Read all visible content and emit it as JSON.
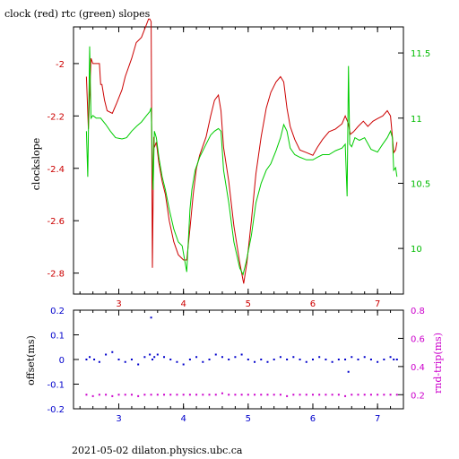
{
  "chart_data": [
    {
      "type": "line",
      "title": "clock (red) rtc (green) slopes",
      "ylabel": "clockslope",
      "xlim": [
        2.3,
        7.4
      ],
      "ylim": [
        -2.88,
        -1.86
      ],
      "y2lim": [
        9.65,
        11.7
      ],
      "x_ticks": [
        "3",
        "4",
        "5",
        "6",
        "7"
      ],
      "y_ticks": [
        "-2",
        "-2.2",
        "-2.4",
        "-2.6",
        "-2.8"
      ],
      "y2_ticks": [
        "11.5",
        "11",
        "10.5",
        "10"
      ],
      "colors": {
        "axis_left": "#cc0000",
        "axis_right": "#00bb00"
      },
      "series": [
        {
          "axis": "left",
          "color": "#cc0000",
          "x": [
            2.5,
            2.53,
            2.57,
            2.6,
            2.62,
            2.7,
            2.72,
            2.74,
            2.78,
            2.82,
            2.9,
            2.97,
            3.05,
            3.1,
            3.2,
            3.27,
            3.35,
            3.43,
            3.46,
            3.48,
            3.5,
            3.52,
            3.53,
            3.54,
            3.55,
            3.58,
            3.62,
            3.67,
            3.72,
            3.78,
            3.85,
            3.92,
            4.0,
            4.05,
            4.1,
            4.15,
            4.2,
            4.25,
            4.35,
            4.42,
            4.48,
            4.54,
            4.58,
            4.62,
            4.7,
            4.78,
            4.87,
            4.93,
            4.98,
            5.05,
            5.12,
            5.2,
            5.28,
            5.35,
            5.43,
            5.5,
            5.55,
            5.6,
            5.65,
            5.72,
            5.8,
            5.9,
            6.0,
            6.07,
            6.15,
            6.25,
            6.35,
            6.45,
            6.5,
            6.55,
            6.58,
            6.63,
            6.7,
            6.78,
            6.85,
            6.93,
            7.0,
            7.08,
            7.15,
            7.2,
            7.23,
            7.25,
            7.28,
            7.3
          ],
          "y": [
            -2.05,
            -2.25,
            -1.98,
            -2.0,
            -2.0,
            -2.0,
            -2.08,
            -2.08,
            -2.14,
            -2.18,
            -2.19,
            -2.15,
            -2.1,
            -2.05,
            -1.98,
            -1.92,
            -1.9,
            -1.85,
            -1.83,
            -1.83,
            -1.84,
            -2.78,
            -2.52,
            -2.28,
            -2.32,
            -2.3,
            -2.38,
            -2.45,
            -2.5,
            -2.6,
            -2.68,
            -2.73,
            -2.75,
            -2.75,
            -2.63,
            -2.5,
            -2.4,
            -2.35,
            -2.28,
            -2.2,
            -2.14,
            -2.12,
            -2.18,
            -2.32,
            -2.45,
            -2.62,
            -2.76,
            -2.84,
            -2.76,
            -2.6,
            -2.42,
            -2.28,
            -2.17,
            -2.11,
            -2.07,
            -2.05,
            -2.07,
            -2.17,
            -2.24,
            -2.29,
            -2.33,
            -2.34,
            -2.35,
            -2.32,
            -2.29,
            -2.26,
            -2.25,
            -2.23,
            -2.2,
            -2.23,
            -2.27,
            -2.26,
            -2.24,
            -2.22,
            -2.24,
            -2.22,
            -2.21,
            -2.2,
            -2.18,
            -2.2,
            -2.28,
            -2.34,
            -2.33,
            -2.3
          ]
        },
        {
          "axis": "right",
          "color": "#00cc00",
          "x": [
            2.5,
            2.52,
            2.55,
            2.57,
            2.6,
            2.65,
            2.72,
            2.8,
            2.87,
            2.95,
            3.05,
            3.12,
            3.2,
            3.28,
            3.35,
            3.43,
            3.48,
            3.5,
            3.53,
            3.55,
            3.58,
            3.62,
            3.67,
            3.72,
            3.78,
            3.85,
            3.92,
            3.98,
            4.05,
            4.08,
            4.1,
            4.13,
            4.18,
            4.25,
            4.35,
            4.42,
            4.48,
            4.54,
            4.58,
            4.62,
            4.7,
            4.78,
            4.87,
            4.92,
            4.97,
            5.05,
            5.12,
            5.2,
            5.28,
            5.35,
            5.43,
            5.5,
            5.55,
            5.6,
            5.65,
            5.72,
            5.8,
            5.9,
            6.0,
            6.07,
            6.15,
            6.25,
            6.35,
            6.45,
            6.5,
            6.53,
            6.55,
            6.57,
            6.6,
            6.65,
            6.72,
            6.8,
            6.9,
            7.0,
            7.08,
            7.15,
            7.2,
            7.23,
            7.25,
            7.28,
            7.3
          ],
          "y": [
            10.9,
            10.55,
            11.55,
            11.0,
            11.02,
            11.0,
            11.0,
            10.95,
            10.9,
            10.85,
            10.84,
            10.85,
            10.9,
            10.94,
            10.97,
            11.02,
            11.05,
            11.08,
            10.45,
            10.9,
            10.85,
            10.7,
            10.55,
            10.45,
            10.3,
            10.15,
            10.05,
            10.02,
            9.82,
            10.1,
            10.3,
            10.45,
            10.6,
            10.7,
            10.8,
            10.87,
            10.9,
            10.92,
            10.9,
            10.6,
            10.35,
            10.05,
            9.85,
            9.8,
            9.9,
            10.1,
            10.35,
            10.5,
            10.6,
            10.65,
            10.75,
            10.85,
            10.95,
            10.9,
            10.77,
            10.72,
            10.7,
            10.68,
            10.68,
            10.7,
            10.72,
            10.72,
            10.75,
            10.77,
            10.8,
            10.4,
            11.4,
            10.8,
            10.78,
            10.85,
            10.83,
            10.85,
            10.76,
            10.74,
            10.8,
            10.85,
            10.9,
            10.85,
            10.6,
            10.62,
            10.55
          ]
        }
      ]
    },
    {
      "type": "scatter",
      "ylabel": "offset(ms)",
      "y2label": "rnd-trip(ms)",
      "xlim": [
        2.3,
        7.4
      ],
      "ylim": [
        -0.2,
        0.2
      ],
      "y2lim": [
        0.1,
        0.8
      ],
      "x_ticks": [
        "3",
        "4",
        "5",
        "6",
        "7"
      ],
      "y_ticks": [
        "0.2",
        "0.1",
        "0",
        "-0.1",
        "-0.2"
      ],
      "y2_ticks": [
        "0.8",
        "0.6",
        "0.4",
        "0.2"
      ],
      "colors": {
        "axis_left": "#0000cc",
        "axis_right": "#cc00cc"
      },
      "series": [
        {
          "axis": "left",
          "color": "#0000cc",
          "x": [
            2.5,
            2.55,
            2.62,
            2.7,
            2.8,
            2.9,
            3.0,
            3.1,
            3.2,
            3.3,
            3.4,
            3.48,
            3.5,
            3.52,
            3.55,
            3.6,
            3.7,
            3.8,
            3.9,
            4.0,
            4.1,
            4.2,
            4.3,
            4.4,
            4.5,
            4.6,
            4.7,
            4.8,
            4.9,
            5.0,
            5.1,
            5.2,
            5.3,
            5.4,
            5.5,
            5.6,
            5.7,
            5.8,
            5.9,
            6.0,
            6.1,
            6.2,
            6.3,
            6.4,
            6.5,
            6.55,
            6.6,
            6.7,
            6.8,
            6.9,
            7.0,
            7.1,
            7.2,
            7.25,
            7.3
          ],
          "y": [
            0.0,
            0.01,
            0.0,
            -0.01,
            0.02,
            0.03,
            0.0,
            -0.01,
            0.0,
            -0.02,
            0.01,
            0.02,
            0.17,
            0.0,
            0.01,
            0.02,
            0.01,
            0.0,
            -0.01,
            -0.02,
            0.0,
            0.01,
            -0.01,
            0.0,
            0.02,
            0.01,
            0.0,
            0.01,
            0.02,
            0.0,
            -0.01,
            0.0,
            -0.01,
            0.0,
            0.01,
            0.0,
            0.01,
            0.0,
            -0.01,
            0.0,
            0.01,
            0.0,
            -0.01,
            0.0,
            0.0,
            -0.05,
            0.01,
            0.0,
            0.01,
            0.0,
            -0.01,
            0.0,
            0.01,
            0.0,
            0.0
          ]
        },
        {
          "axis": "right",
          "color": "#cc00cc",
          "x": [
            2.5,
            2.6,
            2.7,
            2.8,
            2.9,
            3.0,
            3.1,
            3.2,
            3.3,
            3.4,
            3.5,
            3.6,
            3.7,
            3.8,
            3.9,
            4.0,
            4.1,
            4.2,
            4.3,
            4.4,
            4.5,
            4.6,
            4.7,
            4.8,
            4.9,
            5.0,
            5.1,
            5.2,
            5.3,
            5.4,
            5.5,
            5.6,
            5.7,
            5.8,
            5.9,
            6.0,
            6.1,
            6.2,
            6.3,
            6.4,
            6.5,
            6.6,
            6.7,
            6.8,
            6.9,
            7.0,
            7.1,
            7.2,
            7.3
          ],
          "y": [
            0.2,
            0.19,
            0.2,
            0.2,
            0.19,
            0.2,
            0.2,
            0.2,
            0.19,
            0.2,
            0.2,
            0.2,
            0.2,
            0.2,
            0.2,
            0.2,
            0.2,
            0.2,
            0.2,
            0.2,
            0.2,
            0.21,
            0.2,
            0.2,
            0.2,
            0.2,
            0.2,
            0.2,
            0.2,
            0.2,
            0.2,
            0.19,
            0.2,
            0.2,
            0.2,
            0.2,
            0.2,
            0.2,
            0.2,
            0.2,
            0.19,
            0.2,
            0.2,
            0.2,
            0.2,
            0.2,
            0.2,
            0.2,
            0.2
          ]
        }
      ]
    }
  ],
  "footer": {
    "text": "2021-05-02  dilaton.physics.ubc.ca"
  }
}
